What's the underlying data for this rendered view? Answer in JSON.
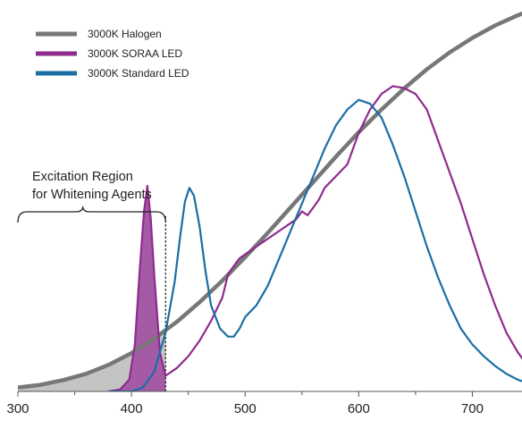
{
  "chart_data": {
    "type": "line",
    "title": "",
    "xlabel": "",
    "ylabel": "",
    "xlim": [
      300,
      750
    ],
    "ylim": [
      0,
      1.0
    ],
    "x_ticks": [
      300,
      400,
      500,
      600,
      700
    ],
    "grid": false,
    "legend_position": "top-left",
    "annotation": {
      "lines": [
        "Excitation Region",
        "for Whitening Agents"
      ],
      "x_range": [
        300,
        430
      ]
    },
    "series": [
      {
        "name": "3000K Halogen",
        "color": "#777777",
        "x": [
          300,
          320,
          340,
          360,
          380,
          400,
          420,
          440,
          460,
          480,
          500,
          520,
          540,
          560,
          580,
          600,
          620,
          640,
          660,
          680,
          700,
          720,
          740,
          750
        ],
        "y": [
          0.01,
          0.017,
          0.029,
          0.045,
          0.068,
          0.098,
          0.135,
          0.178,
          0.228,
          0.283,
          0.343,
          0.405,
          0.47,
          0.535,
          0.6,
          0.662,
          0.72,
          0.774,
          0.823,
          0.866,
          0.903,
          0.935,
          0.961,
          0.972
        ]
      },
      {
        "name": "3000K SORAA LED",
        "color": "#8e2b8e",
        "x": [
          380,
          390,
          398,
          403,
          407,
          411,
          414,
          417,
          420,
          425,
          430,
          440,
          450,
          460,
          470,
          480,
          485,
          490,
          495,
          500,
          510,
          520,
          530,
          540,
          545,
          550,
          555,
          560,
          565,
          570,
          580,
          590,
          600,
          610,
          620,
          630,
          640,
          650,
          660,
          670,
          680,
          690,
          700,
          710,
          720,
          730,
          740,
          750
        ],
        "y": [
          0.0,
          0.005,
          0.03,
          0.12,
          0.3,
          0.46,
          0.525,
          0.44,
          0.3,
          0.1,
          0.04,
          0.06,
          0.09,
          0.13,
          0.18,
          0.24,
          0.3,
          0.32,
          0.34,
          0.35,
          0.37,
          0.39,
          0.41,
          0.43,
          0.44,
          0.46,
          0.45,
          0.47,
          0.49,
          0.52,
          0.55,
          0.58,
          0.66,
          0.72,
          0.76,
          0.78,
          0.775,
          0.76,
          0.72,
          0.64,
          0.56,
          0.48,
          0.39,
          0.3,
          0.22,
          0.15,
          0.1,
          0.06
        ]
      },
      {
        "name": "3000K Standard LED",
        "color": "#1a6ea3",
        "x": [
          380,
          400,
          410,
          420,
          430,
          438,
          443,
          447,
          451,
          455,
          460,
          465,
          470,
          478,
          485,
          490,
          495,
          500,
          510,
          520,
          530,
          540,
          550,
          560,
          570,
          580,
          590,
          600,
          610,
          620,
          630,
          640,
          650,
          660,
          670,
          680,
          690,
          700,
          710,
          720,
          730,
          740,
          750
        ],
        "y": [
          0.0,
          0.0,
          0.01,
          0.05,
          0.15,
          0.28,
          0.4,
          0.485,
          0.52,
          0.5,
          0.42,
          0.31,
          0.22,
          0.16,
          0.14,
          0.14,
          0.16,
          0.19,
          0.22,
          0.27,
          0.34,
          0.41,
          0.48,
          0.55,
          0.62,
          0.68,
          0.72,
          0.745,
          0.735,
          0.7,
          0.63,
          0.55,
          0.46,
          0.37,
          0.29,
          0.22,
          0.16,
          0.12,
          0.09,
          0.065,
          0.045,
          0.03,
          0.02
        ]
      }
    ]
  }
}
